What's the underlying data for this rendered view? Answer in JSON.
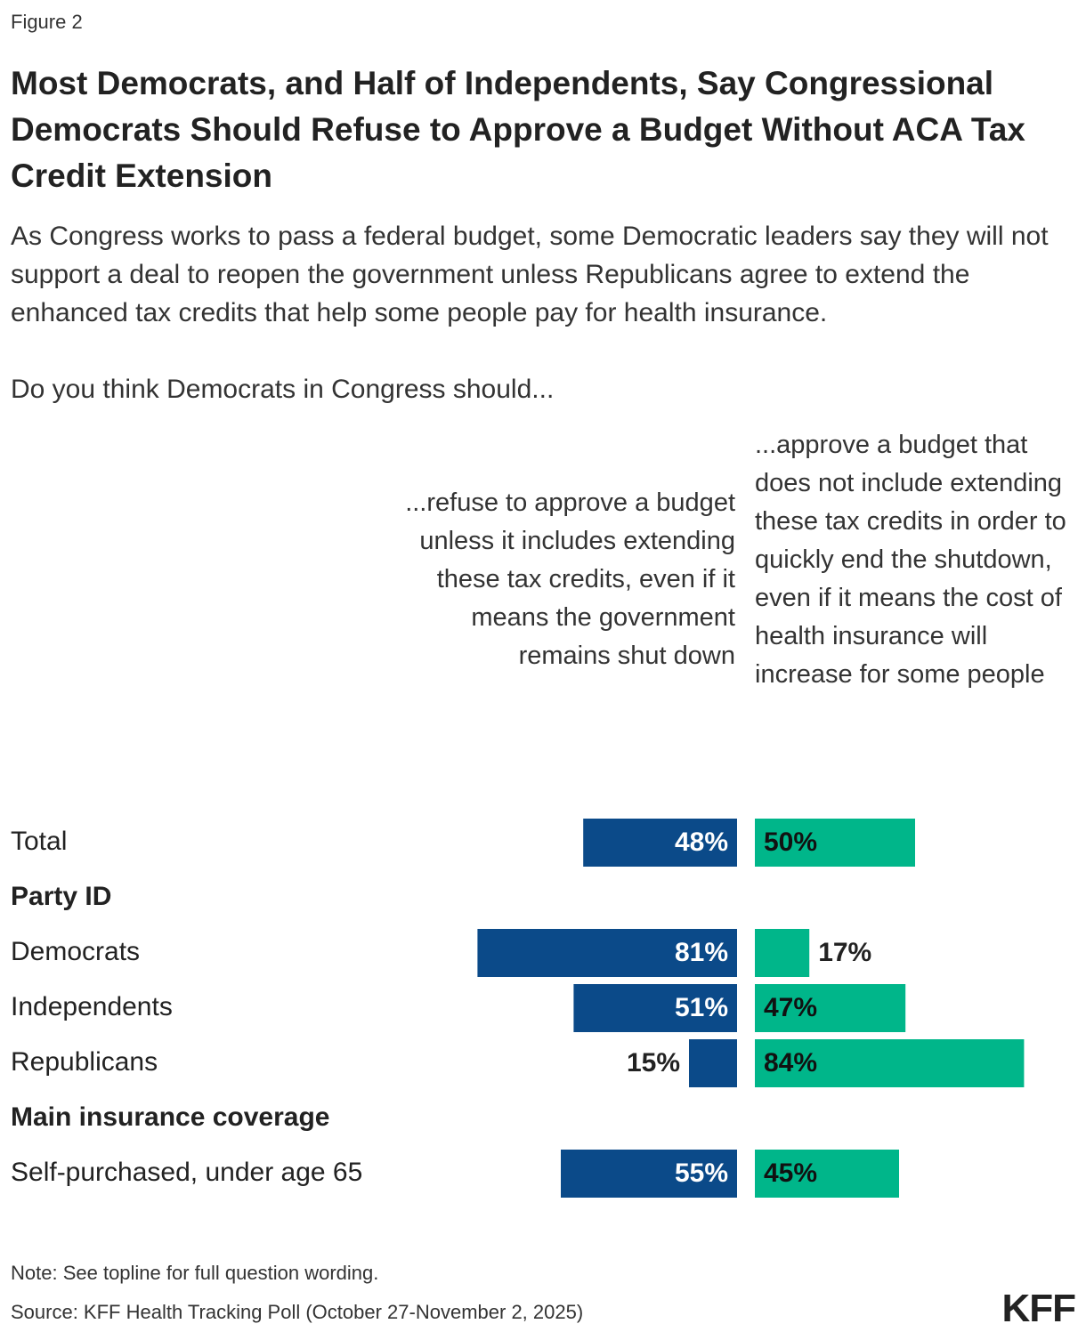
{
  "figure_label": "Figure 2",
  "title": "Most Democrats, and Half of Independents, Say Congressional Democrats Should Refuse to Approve a Budget Without ACA Tax Credit Extension",
  "subtitle": "As Congress works to pass a federal budget, some Democratic leaders say they will not support a deal to reopen the government unless Republicans agree to extend the enhanced tax credits that help some people pay for health insurance.",
  "question": "Do you think Democrats in Congress should...",
  "note": "Note: See topline for full question wording.",
  "source": "Source: KFF Health Tracking Poll (October 27-November 2, 2025)",
  "logo": "KFF",
  "colors": {
    "refuse": "#0b4a89",
    "approve": "#00b68a",
    "text": "#222222"
  },
  "chart_data": {
    "type": "bar",
    "orientation": "diverging-horizontal",
    "series": [
      {
        "name": "...refuse to approve a budget unless it includes extending these tax credits, even if it means the government remains shut down",
        "color": "#0b4a89"
      },
      {
        "name": "...approve a budget that does not include extending these tax credits in order to quickly end the shutdown, even if it means the cost of health insurance will increase for some people",
        "color": "#00b68a"
      }
    ],
    "rows": [
      {
        "kind": "row",
        "label": "Total",
        "refuse": 48,
        "approve": 50,
        "refuse_label": "48%",
        "approve_label": "50%"
      },
      {
        "kind": "header",
        "label": "Party ID"
      },
      {
        "kind": "row",
        "label": "Democrats",
        "refuse": 81,
        "approve": 17,
        "refuse_label": "81%",
        "approve_label": "17%"
      },
      {
        "kind": "row",
        "label": "Independents",
        "refuse": 51,
        "approve": 47,
        "refuse_label": "51%",
        "approve_label": "47%"
      },
      {
        "kind": "row",
        "label": "Republicans",
        "refuse": 15,
        "approve": 84,
        "refuse_label": "15%",
        "approve_label": "84%"
      },
      {
        "kind": "header",
        "label": "Main insurance coverage"
      },
      {
        "kind": "row",
        "label": "Self-purchased, under age 65",
        "refuse": 55,
        "approve": 45,
        "refuse_label": "55%",
        "approve_label": "45%"
      }
    ],
    "xlim": [
      0,
      100
    ]
  }
}
